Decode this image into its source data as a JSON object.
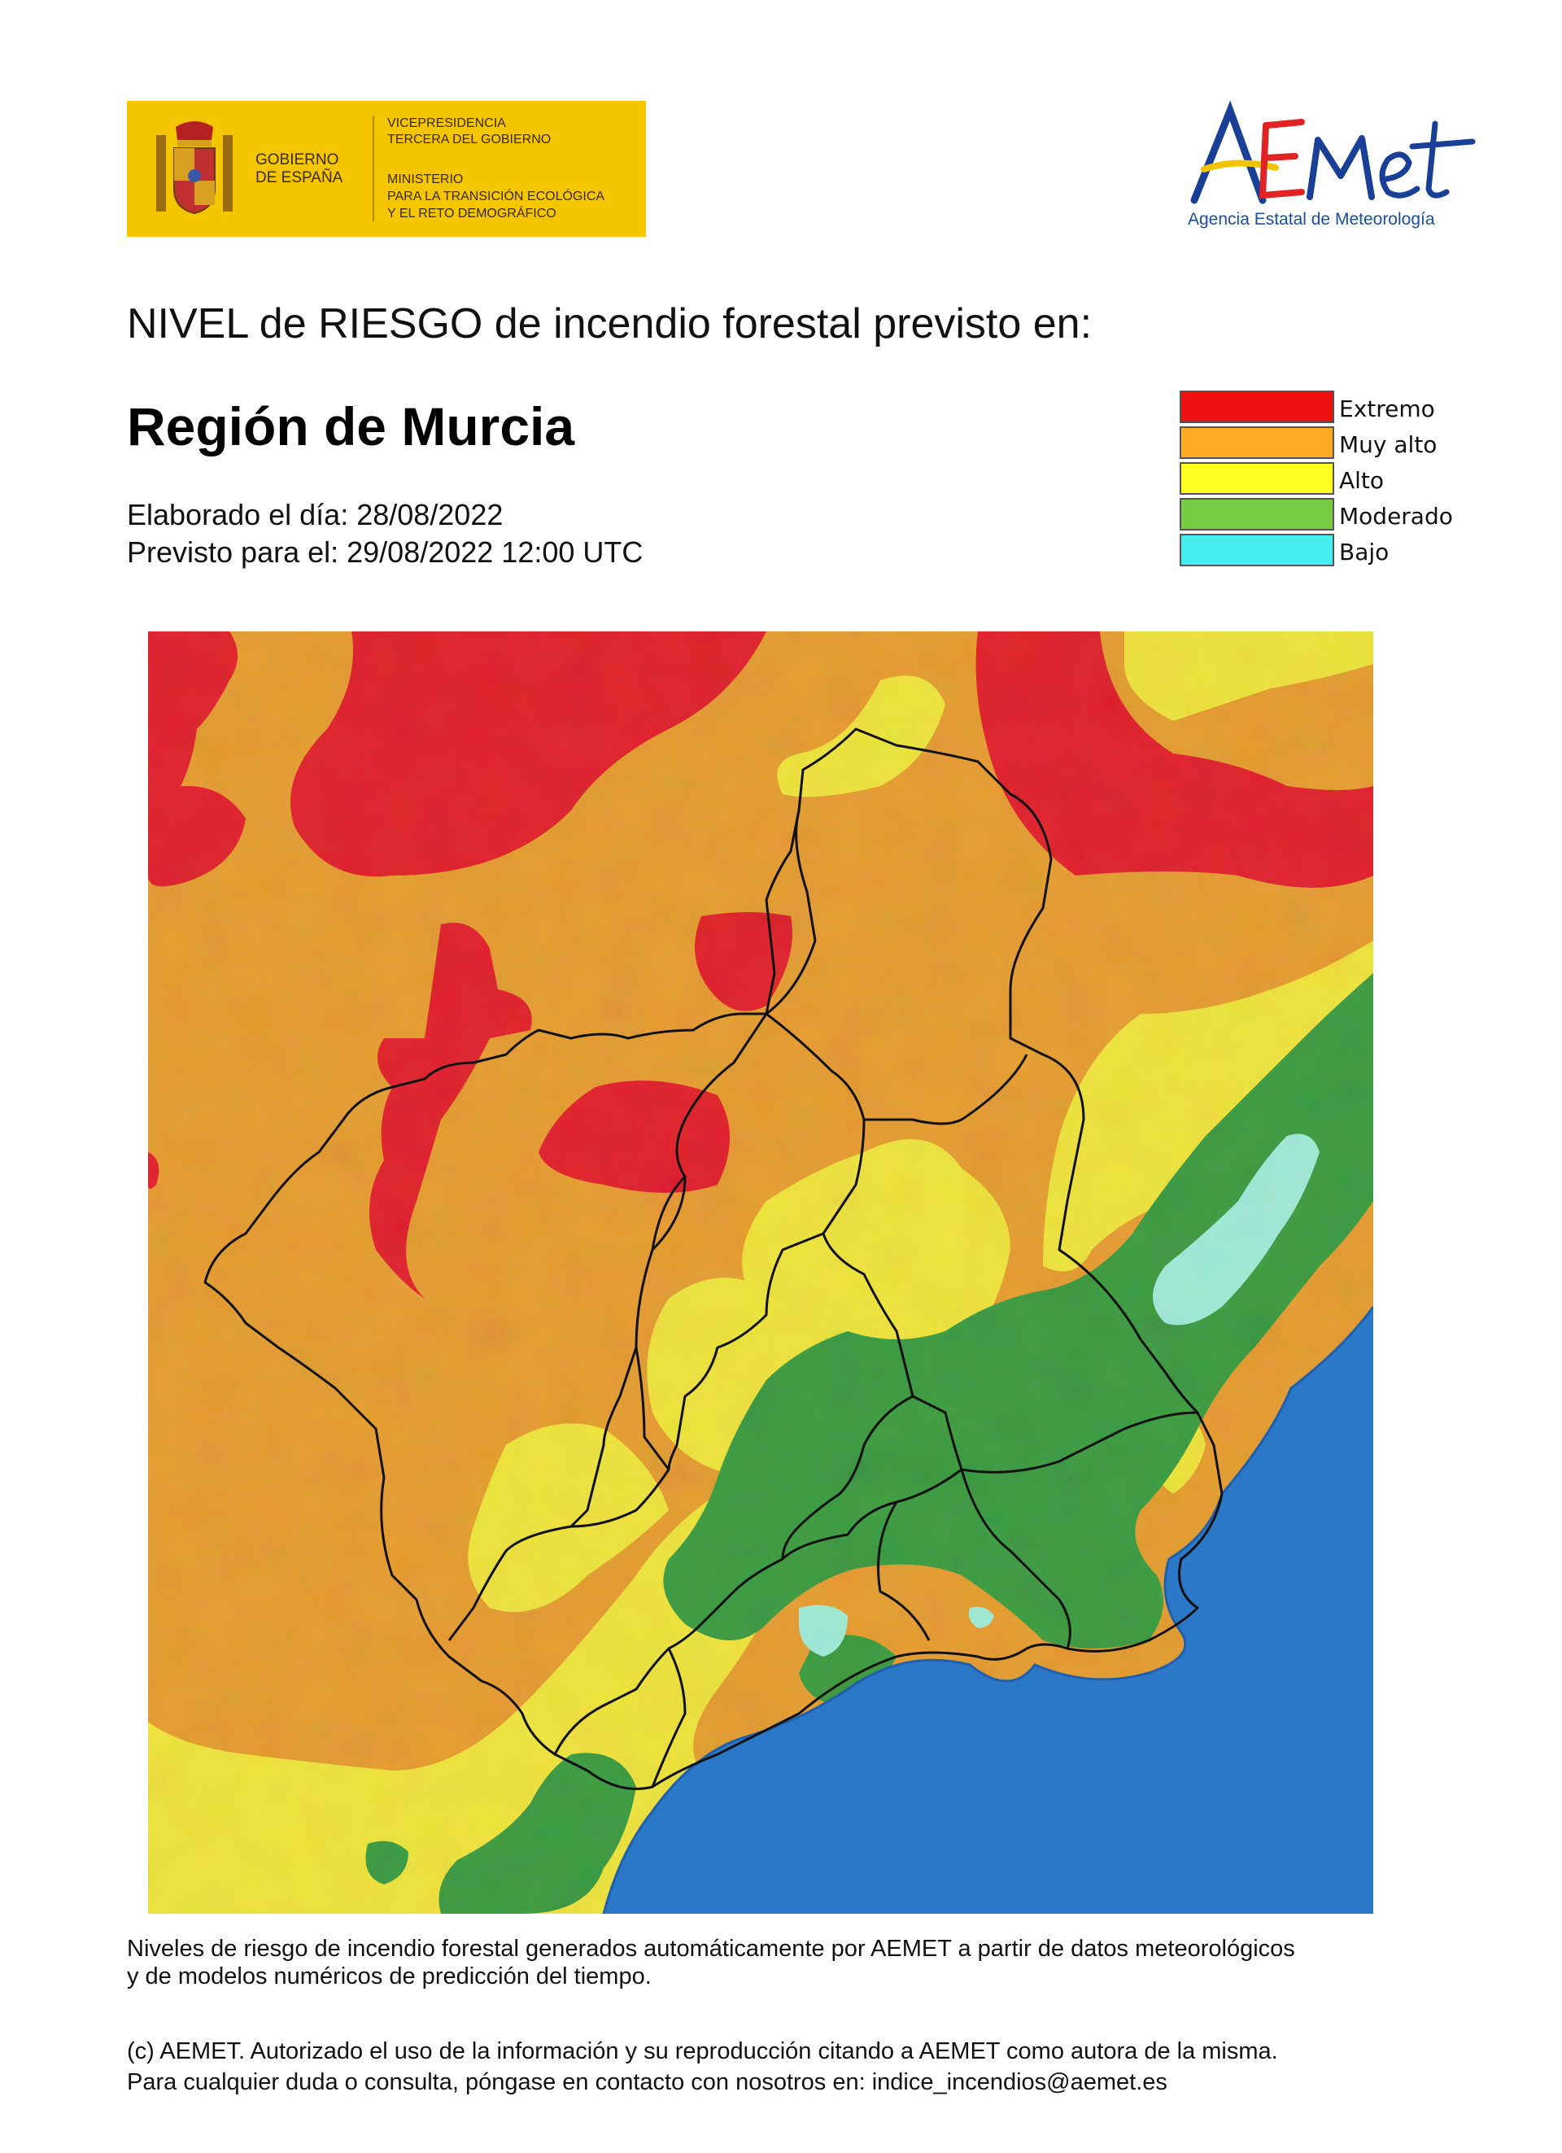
{
  "header": {
    "gov_logo": {
      "gobierno": "GOBIERNO",
      "espana": "DE ESPAÑA",
      "vicepresidencia_1": "VICEPRESIDENCIA",
      "vicepresidencia_2": "TERCERA DEL GOBIERNO",
      "ministerio_1": "MINISTERIO",
      "ministerio_2": "PARA LA TRANSICIÓN ECOLÓGICA",
      "ministerio_3": "Y EL RETO DEMOGRÁFICO"
    },
    "aemet_logo": {
      "wordmark": "AEMet",
      "subtitle": "Agencia Estatal de Meteorología"
    }
  },
  "title": {
    "heading": "NIVEL de RIESGO de incendio forestal previsto en:",
    "region": "Región de Murcia",
    "elaborado": "Elaborado el día: 28/08/2022",
    "previsto": "Previsto para el: 29/08/2022 12:00 UTC"
  },
  "legend": [
    {
      "label": "Extremo",
      "color": "#ee1111"
    },
    {
      "label": "Muy alto",
      "color": "#ffaa22"
    },
    {
      "label": "Alto",
      "color": "#ffff22"
    },
    {
      "label": "Moderado",
      "color": "#77cc44"
    },
    {
      "label": "Bajo",
      "color": "#44eeee"
    }
  ],
  "map": {
    "colors": {
      "extremo": "#e01f2a",
      "muy_alto": "#e59b2e",
      "alto": "#eee33a",
      "moderado": "#3a9a3e",
      "bajo": "#9fe9d6",
      "sea": "#2b78c9"
    }
  },
  "footer": {
    "line1": "Niveles de riesgo de incendio forestal generados automáticamente por AEMET a partir de datos meteorológicos",
    "line2": "y de modelos numéricos de predicción del tiempo.",
    "line3": "(c) AEMET. Autorizado el uso de la información y su reproducción citando a AEMET como autora de la misma.",
    "line4": "Para cualquier duda o consulta, póngase en contacto con nosotros en: indice_incendios@aemet.es"
  }
}
